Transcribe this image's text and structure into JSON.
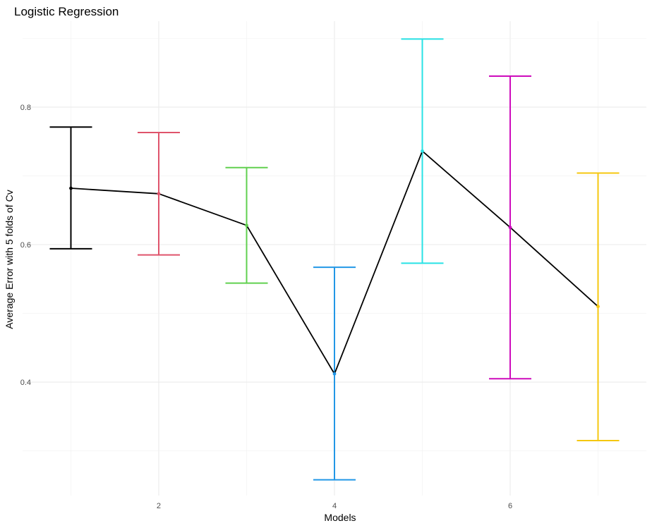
{
  "chart_data": {
    "type": "line",
    "title": "Logistic Regression",
    "xlabel": "Models",
    "ylabel": "Average Error with 5 folds of Cv",
    "x_ticks": [
      2,
      4,
      6
    ],
    "y_ticks": [
      0.4,
      0.6,
      0.8
    ],
    "xlim": [
      0.45,
      7.55
    ],
    "ylim": [
      0.235,
      0.925
    ],
    "grid": true,
    "line_color": "#000000",
    "points": [
      {
        "x": 1,
        "mean": 0.682,
        "lower": 0.594,
        "upper": 0.771,
        "color": "#000000"
      },
      {
        "x": 2,
        "mean": 0.674,
        "lower": 0.585,
        "upper": 0.763,
        "color": "#DF536B"
      },
      {
        "x": 3,
        "mean": 0.628,
        "lower": 0.544,
        "upper": 0.712,
        "color": "#61D04F"
      },
      {
        "x": 4,
        "mean": 0.412,
        "lower": 0.258,
        "upper": 0.567,
        "color": "#2297E6"
      },
      {
        "x": 5,
        "mean": 0.736,
        "lower": 0.573,
        "upper": 0.899,
        "color": "#28E2E5"
      },
      {
        "x": 6,
        "mean": 0.625,
        "lower": 0.405,
        "upper": 0.845,
        "color": "#CD0BBC"
      },
      {
        "x": 7,
        "mean": 0.51,
        "lower": 0.315,
        "upper": 0.704,
        "color": "#F5C710"
      }
    ]
  }
}
